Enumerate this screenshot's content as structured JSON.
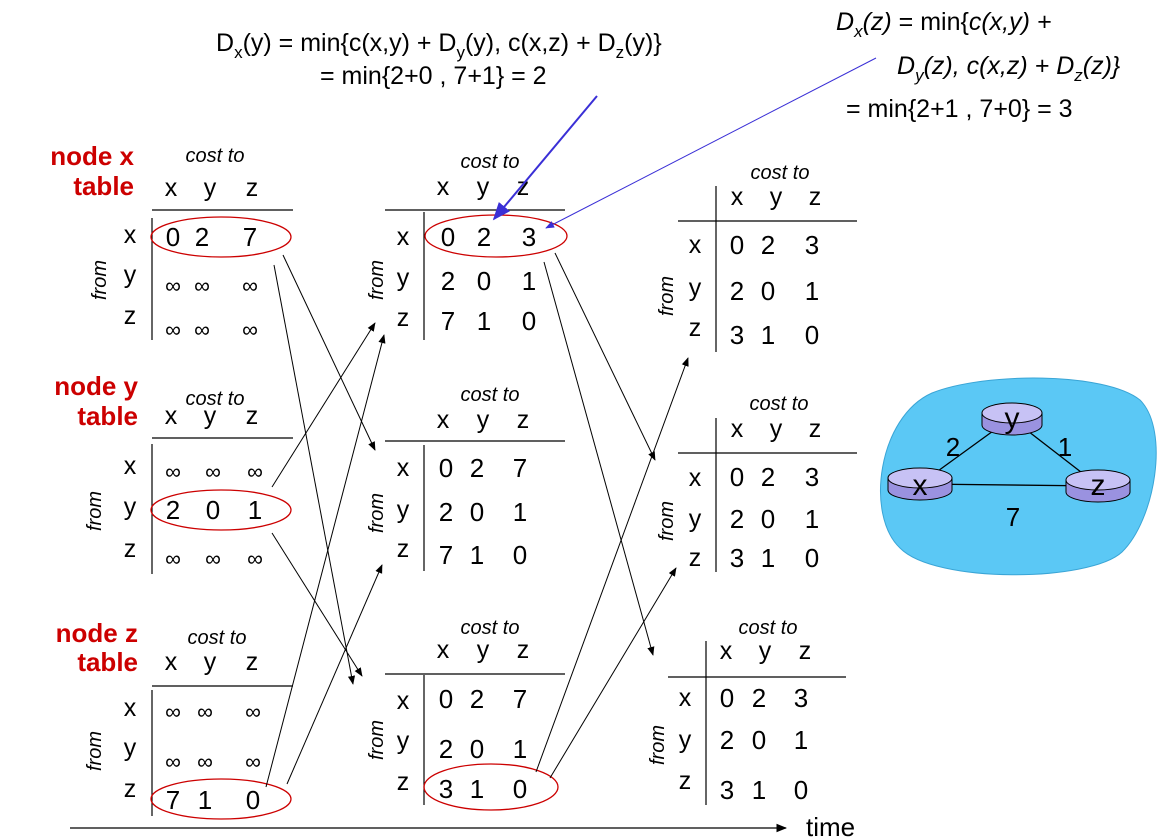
{
  "equations": {
    "left_line1": "D",
    "left_sub_x": "x",
    "left_text1": "(y) = min{c(x,y) + D",
    "left_sub_y": "y",
    "left_text2": "(y), c(x,z) + D",
    "left_sub_z": "z",
    "left_text3": "(y)}",
    "left_line2": "= min{2+0 , 7+1} = 2",
    "right_d": "D",
    "right_sub_x": "x",
    "right_text1": "(z)",
    "right_text2": " = min{",
    "right_text3": "c(x,y) +",
    "right_d2": "D",
    "right_sub_y": "y",
    "right_text4": "(z), c(x,z) + D",
    "right_sub_z": "z",
    "right_text5": "(z)}",
    "right_line3": "= min{2+1 , 7+0} = 3"
  },
  "node_labels": {
    "x_line1": "node x",
    "x_line2": "table",
    "y_line1": "node y",
    "y_line2": "table",
    "z_line1": "node z",
    "z_line2": "table"
  },
  "header": {
    "cost_to": "cost to",
    "from": "from"
  },
  "columns": [
    "x",
    "y",
    "z"
  ],
  "rows": [
    "x",
    "y",
    "z"
  ],
  "tables": {
    "c1x": [
      [
        "0",
        "2",
        "7"
      ],
      [
        "∞",
        "∞",
        "∞"
      ],
      [
        "∞",
        "∞",
        "∞"
      ]
    ],
    "c1y": [
      [
        "∞",
        "∞",
        "∞"
      ],
      [
        "2",
        "0",
        "1"
      ],
      [
        "∞",
        "∞",
        "∞"
      ]
    ],
    "c1z": [
      [
        "∞",
        "∞",
        "∞"
      ],
      [
        "∞",
        "∞",
        "∞"
      ],
      [
        "7",
        "1",
        "0"
      ]
    ],
    "c2x": [
      [
        "0",
        "2",
        "3"
      ],
      [
        "2",
        "0",
        "1"
      ],
      [
        "7",
        "1",
        "0"
      ]
    ],
    "c2y": [
      [
        "0",
        "2",
        "7"
      ],
      [
        "2",
        "0",
        "1"
      ],
      [
        "7",
        "1",
        "0"
      ]
    ],
    "c2z": [
      [
        "0",
        "2",
        "7"
      ],
      [
        "2",
        "0",
        "1"
      ],
      [
        "3",
        "1",
        "0"
      ]
    ],
    "c3x": [
      [
        "0",
        "2",
        "3"
      ],
      [
        "2",
        "0",
        "1"
      ],
      [
        "3",
        "1",
        "0"
      ]
    ],
    "c3y": [
      [
        "0",
        "2",
        "3"
      ],
      [
        "2",
        "0",
        "1"
      ],
      [
        "3",
        "1",
        "0"
      ]
    ],
    "c3z": [
      [
        "0",
        "2",
        "3"
      ],
      [
        "2",
        "0",
        "1"
      ],
      [
        "3",
        "1",
        "0"
      ]
    ]
  },
  "network": {
    "nodes": [
      "x",
      "y",
      "z"
    ],
    "edges": [
      {
        "from": "x",
        "to": "y",
        "cost": "2"
      },
      {
        "from": "y",
        "to": "z",
        "cost": "1"
      },
      {
        "from": "x",
        "to": "z",
        "cost": "7"
      }
    ],
    "cloud_color": "#5bc8f5",
    "router_color": "#b9b4f0"
  },
  "time_label": "time",
  "colors": {
    "accent": "#cc0000",
    "pointer": "#3a2fd6"
  }
}
